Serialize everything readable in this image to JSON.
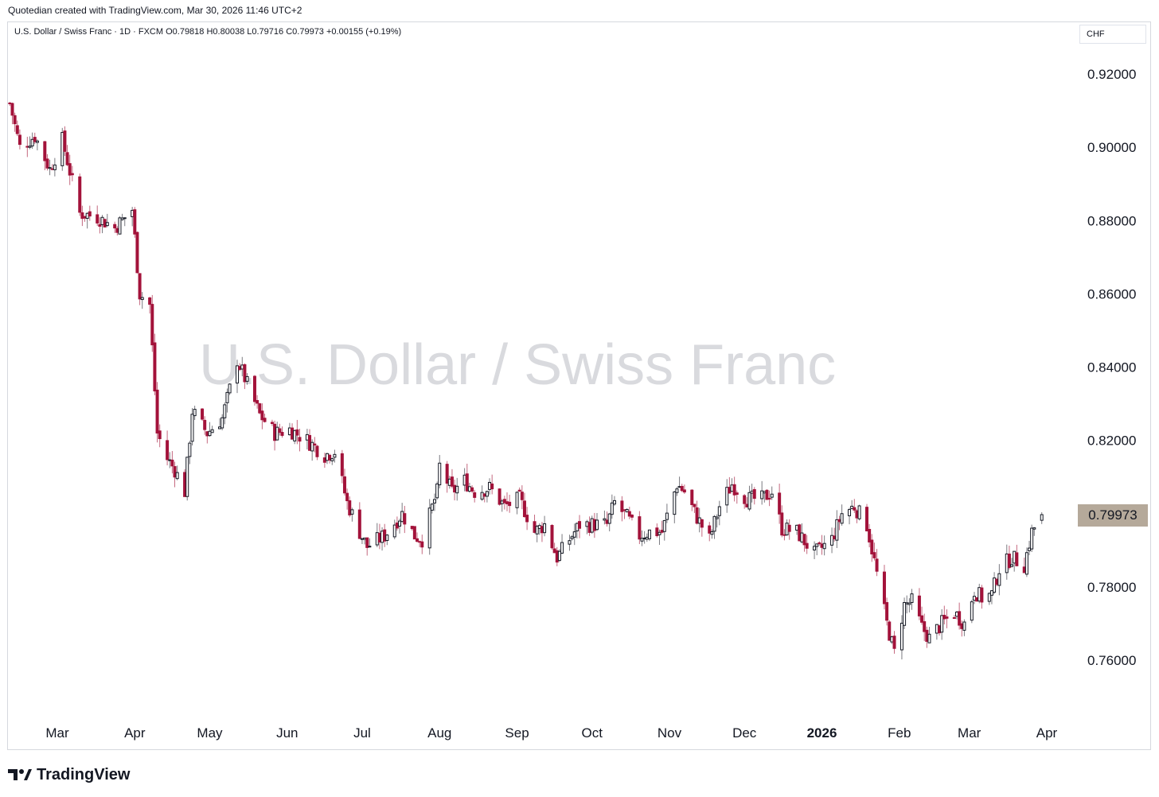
{
  "header": {
    "created_text": "Quotedian created with TradingView.com, Mar 30, 2026 11:46 UTC+2"
  },
  "legend": {
    "symbol": "U.S. Dollar / Swiss Franc · 1D · FXCM",
    "open": "O0.79818",
    "high": "H0.80038",
    "low": "L0.79716",
    "close": "C0.79973",
    "change": "+0.00155 (+0.19%)"
  },
  "watermark": "U.S. Dollar / Swiss Franc",
  "currency": "CHF",
  "last_price_label": "0.79973",
  "footer": {
    "brand": "TradingView",
    "logo_icon": "tradingview-logo-icon"
  },
  "colors": {
    "up": "#131722",
    "down": "#a3123a",
    "price_label_bg": "#b5a99a",
    "watermark": "#d9dade"
  },
  "chart_data": {
    "type": "candlestick",
    "title": "U.S. Dollar / Swiss Franc",
    "interval": "1D",
    "source": "FXCM",
    "ylim": [
      0.74,
      0.93
    ],
    "y_ticks": [
      "0.92000",
      "0.90000",
      "0.88000",
      "0.86000",
      "0.84000",
      "0.82000",
      "0.80000",
      "0.78000",
      "0.76000"
    ],
    "y_tick_values": [
      0.92,
      0.9,
      0.88,
      0.86,
      0.84,
      0.82,
      0.8,
      0.78,
      0.76
    ],
    "x_ticks": [
      {
        "label": "Mar",
        "date": "2025-03-01"
      },
      {
        "label": "Apr",
        "date": "2025-04-01"
      },
      {
        "label": "May",
        "date": "2025-05-01"
      },
      {
        "label": "Jun",
        "date": "2025-06-01"
      },
      {
        "label": "Jul",
        "date": "2025-07-01"
      },
      {
        "label": "Aug",
        "date": "2025-08-01"
      },
      {
        "label": "Sep",
        "date": "2025-09-01"
      },
      {
        "label": "Oct",
        "date": "2025-10-01"
      },
      {
        "label": "Nov",
        "date": "2025-11-01"
      },
      {
        "label": "Dec",
        "date": "2025-12-01"
      },
      {
        "label": "2026",
        "date": "2026-01-01",
        "bold": true
      },
      {
        "label": "Feb",
        "date": "2026-02-01"
      },
      {
        "label": "Mar",
        "date": "2026-03-01"
      },
      {
        "label": "Apr",
        "date": "2026-04-01"
      }
    ],
    "x_range": [
      "2025-02-10",
      "2026-04-01"
    ],
    "close_path": [
      {
        "date": "2025-02-10",
        "close": 0.912
      },
      {
        "date": "2025-02-14",
        "close": 0.9
      },
      {
        "date": "2025-02-20",
        "close": 0.903
      },
      {
        "date": "2025-02-26",
        "close": 0.894
      },
      {
        "date": "2025-03-03",
        "close": 0.902
      },
      {
        "date": "2025-03-10",
        "close": 0.882
      },
      {
        "date": "2025-03-17",
        "close": 0.881
      },
      {
        "date": "2025-03-24",
        "close": 0.878
      },
      {
        "date": "2025-03-31",
        "close": 0.883
      },
      {
        "date": "2025-04-03",
        "close": 0.86
      },
      {
        "date": "2025-04-07",
        "close": 0.857
      },
      {
        "date": "2025-04-10",
        "close": 0.822
      },
      {
        "date": "2025-04-14",
        "close": 0.815
      },
      {
        "date": "2025-04-17",
        "close": 0.812
      },
      {
        "date": "2025-04-21",
        "close": 0.806
      },
      {
        "date": "2025-04-24",
        "close": 0.828
      },
      {
        "date": "2025-04-30",
        "close": 0.822
      },
      {
        "date": "2025-05-06",
        "close": 0.826
      },
      {
        "date": "2025-05-12",
        "close": 0.842
      },
      {
        "date": "2025-05-15",
        "close": 0.837
      },
      {
        "date": "2025-05-21",
        "close": 0.827
      },
      {
        "date": "2025-05-27",
        "close": 0.822
      },
      {
        "date": "2025-06-02",
        "close": 0.823
      },
      {
        "date": "2025-06-09",
        "close": 0.82
      },
      {
        "date": "2025-06-16",
        "close": 0.816
      },
      {
        "date": "2025-06-20",
        "close": 0.817
      },
      {
        "date": "2025-06-25",
        "close": 0.803
      },
      {
        "date": "2025-06-30",
        "close": 0.795
      },
      {
        "date": "2025-07-03",
        "close": 0.791
      },
      {
        "date": "2025-07-10",
        "close": 0.794
      },
      {
        "date": "2025-07-17",
        "close": 0.8
      },
      {
        "date": "2025-07-22",
        "close": 0.794
      },
      {
        "date": "2025-07-25",
        "close": 0.793
      },
      {
        "date": "2025-07-31",
        "close": 0.806
      },
      {
        "date": "2025-08-01",
        "close": 0.813
      },
      {
        "date": "2025-08-06",
        "close": 0.806
      },
      {
        "date": "2025-08-11",
        "close": 0.809
      },
      {
        "date": "2025-08-15",
        "close": 0.806
      },
      {
        "date": "2025-08-21",
        "close": 0.807
      },
      {
        "date": "2025-08-27",
        "close": 0.802
      },
      {
        "date": "2025-09-02",
        "close": 0.804
      },
      {
        "date": "2025-09-08",
        "close": 0.795
      },
      {
        "date": "2025-09-12",
        "close": 0.797
      },
      {
        "date": "2025-09-17",
        "close": 0.788
      },
      {
        "date": "2025-09-22",
        "close": 0.793
      },
      {
        "date": "2025-09-26",
        "close": 0.797
      },
      {
        "date": "2025-10-02",
        "close": 0.797
      },
      {
        "date": "2025-10-07",
        "close": 0.797
      },
      {
        "date": "2025-10-10",
        "close": 0.803
      },
      {
        "date": "2025-10-15",
        "close": 0.799
      },
      {
        "date": "2025-10-20",
        "close": 0.794
      },
      {
        "date": "2025-10-24",
        "close": 0.795
      },
      {
        "date": "2025-10-29",
        "close": 0.795
      },
      {
        "date": "2025-11-04",
        "close": 0.808
      },
      {
        "date": "2025-11-07",
        "close": 0.806
      },
      {
        "date": "2025-11-12",
        "close": 0.799
      },
      {
        "date": "2025-11-17",
        "close": 0.793
      },
      {
        "date": "2025-11-21",
        "close": 0.802
      },
      {
        "date": "2025-11-26",
        "close": 0.808
      },
      {
        "date": "2025-12-02",
        "close": 0.804
      },
      {
        "date": "2025-12-08",
        "close": 0.804
      },
      {
        "date": "2025-12-12",
        "close": 0.806
      },
      {
        "date": "2025-12-16",
        "close": 0.796
      },
      {
        "date": "2025-12-22",
        "close": 0.795
      },
      {
        "date": "2025-12-29",
        "close": 0.789
      },
      {
        "date": "2026-01-05",
        "close": 0.793
      },
      {
        "date": "2026-01-09",
        "close": 0.8
      },
      {
        "date": "2026-01-14",
        "close": 0.802
      },
      {
        "date": "2026-01-19",
        "close": 0.797
      },
      {
        "date": "2026-01-22",
        "close": 0.787
      },
      {
        "date": "2026-01-27",
        "close": 0.77
      },
      {
        "date": "2026-01-30",
        "close": 0.762
      },
      {
        "date": "2026-02-03",
        "close": 0.775
      },
      {
        "date": "2026-02-06",
        "close": 0.776
      },
      {
        "date": "2026-02-10",
        "close": 0.769
      },
      {
        "date": "2026-02-13",
        "close": 0.766
      },
      {
        "date": "2026-02-18",
        "close": 0.77
      },
      {
        "date": "2026-02-23",
        "close": 0.773
      },
      {
        "date": "2026-02-27",
        "close": 0.77
      },
      {
        "date": "2026-03-03",
        "close": 0.779
      },
      {
        "date": "2026-03-06",
        "close": 0.777
      },
      {
        "date": "2026-03-10",
        "close": 0.778
      },
      {
        "date": "2026-03-13",
        "close": 0.785
      },
      {
        "date": "2026-03-18",
        "close": 0.788
      },
      {
        "date": "2026-03-23",
        "close": 0.786
      },
      {
        "date": "2026-03-26",
        "close": 0.795
      },
      {
        "date": "2026-03-30",
        "close": 0.79973
      }
    ],
    "last": {
      "date": "2026-03-30",
      "open": 0.79818,
      "high": 0.80038,
      "low": 0.79716,
      "close": 0.79973
    }
  }
}
